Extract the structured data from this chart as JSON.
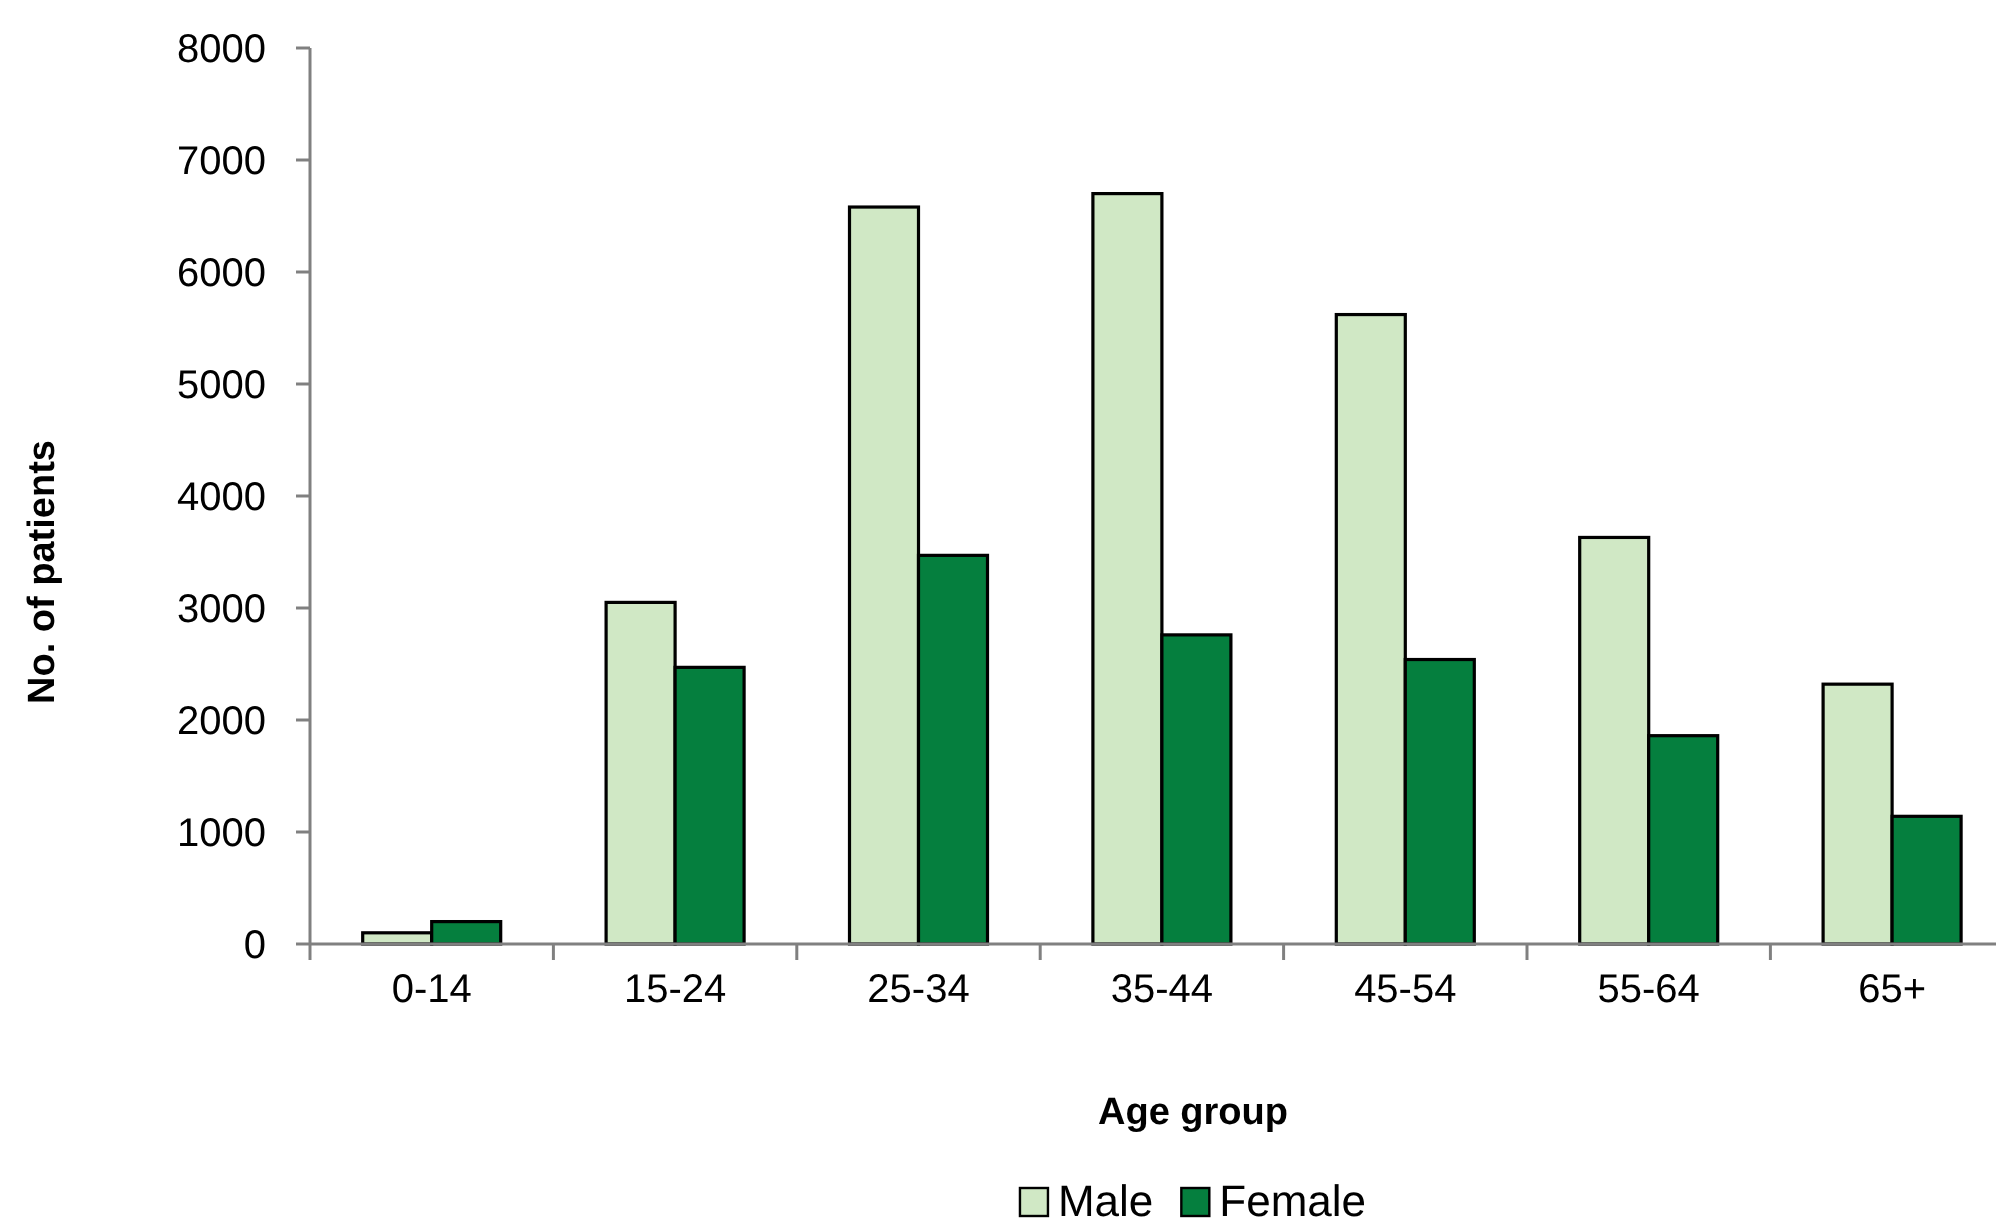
{
  "chart_data": {
    "type": "bar",
    "xlabel": "Age group",
    "ylabel": "No. of patients",
    "categories": [
      "0-14",
      "15-24",
      "25-34",
      "35-44",
      "45-54",
      "55-64",
      "65+"
    ],
    "series": [
      {
        "name": "Male",
        "color": "#d0e8c5",
        "values": [
          100,
          3050,
          6580,
          6700,
          5620,
          3630,
          2320
        ]
      },
      {
        "name": "Female",
        "color": "#057f3e",
        "values": [
          200,
          2470,
          3470,
          2760,
          2540,
          1860,
          1140
        ]
      }
    ],
    "ylim": [
      0,
      8000
    ],
    "yticks": [
      0,
      1000,
      2000,
      3000,
      4000,
      5000,
      6000,
      7000,
      8000
    ],
    "legend": "bottom"
  }
}
